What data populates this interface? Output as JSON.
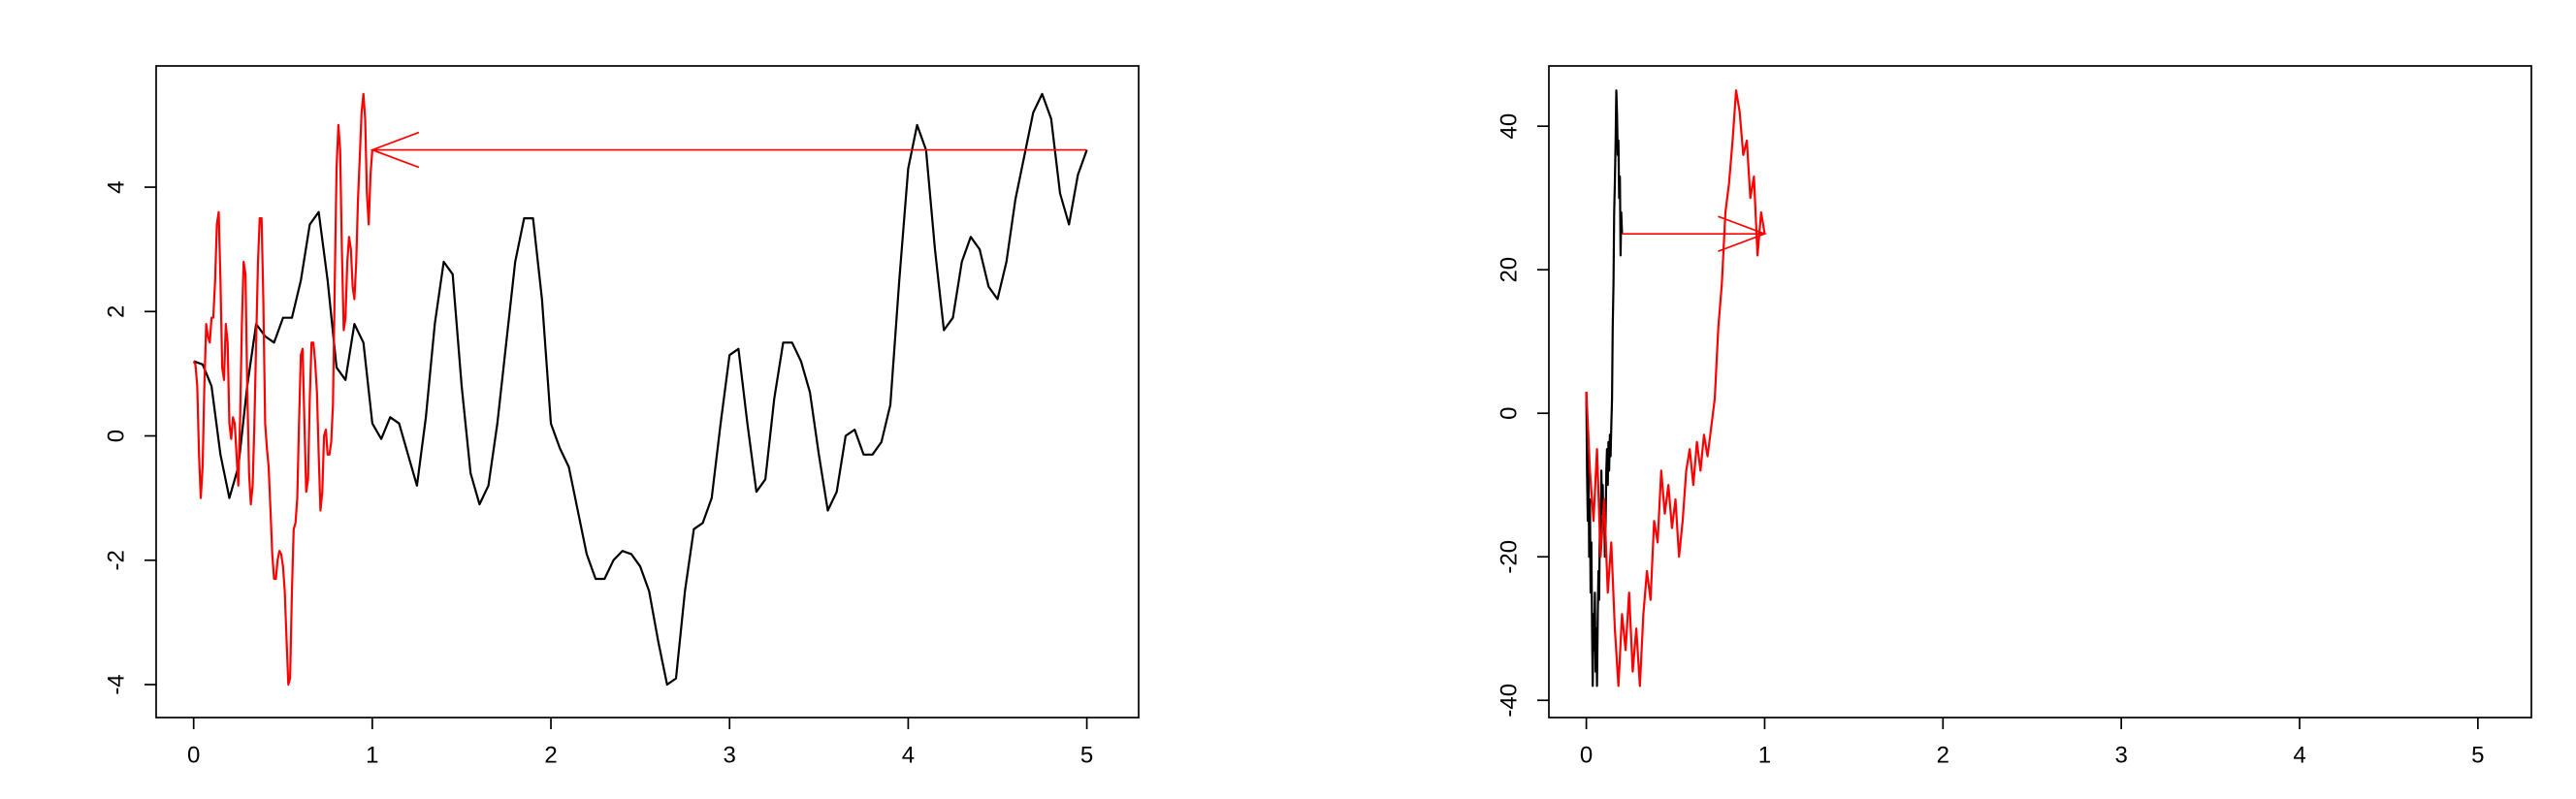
{
  "chart_data": [
    {
      "type": "line",
      "xlim": [
        -0.21,
        5.29
      ],
      "ylim": [
        -4.53,
        5.95
      ],
      "xticks": [
        0,
        1,
        2,
        3,
        4,
        5
      ],
      "yticks": [
        -4,
        -2,
        0,
        2,
        4
      ],
      "series": [
        {
          "color": "#000000",
          "x": [
            0,
            0.05,
            0.1,
            0.15,
            0.2,
            0.25,
            0.3,
            0.35,
            0.4,
            0.45,
            0.5,
            0.55,
            0.6,
            0.65,
            0.7,
            0.75,
            0.8,
            0.85,
            0.9,
            0.95,
            1,
            1.05,
            1.1,
            1.15,
            1.2,
            1.25,
            1.3,
            1.35,
            1.4,
            1.45,
            1.5,
            1.55,
            1.6,
            1.65,
            1.7,
            1.75,
            1.8,
            1.85,
            1.9,
            1.95,
            2,
            2.05,
            2.1,
            2.15,
            2.2,
            2.25,
            2.3,
            2.35,
            2.4,
            2.45,
            2.5,
            2.55,
            2.6,
            2.65,
            2.7,
            2.75,
            2.8,
            2.85,
            2.9,
            2.95,
            3,
            3.05,
            3.1,
            3.15,
            3.2,
            3.25,
            3.3,
            3.35,
            3.4,
            3.45,
            3.5,
            3.55,
            3.6,
            3.65,
            3.7,
            3.75,
            3.8,
            3.85,
            3.9,
            3.95,
            4,
            4.05,
            4.1,
            4.15,
            4.2,
            4.25,
            4.3,
            4.35,
            4.4,
            4.45,
            4.5,
            4.55,
            4.6,
            4.65,
            4.7,
            4.75,
            4.8,
            4.85,
            4.9,
            4.95,
            5
          ],
          "values": [
            1.2,
            1.15,
            0.8,
            -0.3,
            -1.0,
            -0.5,
            0.8,
            1.8,
            1.6,
            1.5,
            1.9,
            1.9,
            2.5,
            3.4,
            3.6,
            2.5,
            1.1,
            0.9,
            1.8,
            1.5,
            0.2,
            -0.05,
            0.3,
            0.2,
            -0.3,
            -0.8,
            0.3,
            1.8,
            2.8,
            2.6,
            0.8,
            -0.6,
            -1.1,
            -0.8,
            0.2,
            1.5,
            2.8,
            3.5,
            3.5,
            2.2,
            0.2,
            -0.2,
            -0.5,
            -1.2,
            -1.9,
            -2.3,
            -2.3,
            -2.0,
            -1.85,
            -1.9,
            -2.1,
            -2.5,
            -3.3,
            -4.0,
            -3.9,
            -2.5,
            -1.5,
            -1.4,
            -1.0,
            0.2,
            1.3,
            1.4,
            0.2,
            -0.9,
            -0.7,
            0.6,
            1.5,
            1.5,
            1.2,
            0.7,
            -0.3,
            -1.2,
            -0.9,
            0.0,
            0.1,
            -0.3,
            -0.3,
            -0.1,
            0.5,
            2.5,
            4.3,
            5.0,
            4.6,
            3.0,
            1.7,
            1.9,
            2.8,
            3.2,
            3.0,
            2.4,
            2.2,
            2.8,
            3.8,
            4.5,
            5.2,
            5.5,
            5.1,
            3.9,
            3.4,
            4.2,
            4.6
          ]
        },
        {
          "color": "#ff0000",
          "x": [
            0,
            0.01,
            0.02,
            0.03,
            0.04,
            0.05,
            0.06,
            0.07,
            0.08,
            0.09,
            0.1,
            0.11,
            0.12,
            0.13,
            0.14,
            0.15,
            0.16,
            0.17,
            0.18,
            0.19,
            0.2,
            0.21,
            0.22,
            0.23,
            0.24,
            0.25,
            0.26,
            0.27,
            0.28,
            0.29,
            0.3,
            0.31,
            0.32,
            0.33,
            0.34,
            0.35,
            0.36,
            0.37,
            0.38,
            0.39,
            0.4,
            0.41,
            0.42,
            0.43,
            0.44,
            0.45,
            0.46,
            0.47,
            0.48,
            0.49,
            0.5,
            0.51,
            0.52,
            0.53,
            0.54,
            0.55,
            0.56,
            0.57,
            0.58,
            0.59,
            0.6,
            0.61,
            0.62,
            0.63,
            0.64,
            0.65,
            0.66,
            0.67,
            0.68,
            0.69,
            0.7,
            0.71,
            0.72,
            0.73,
            0.74,
            0.75,
            0.76,
            0.77,
            0.78,
            0.79,
            0.8,
            0.81,
            0.82,
            0.83,
            0.84,
            0.85,
            0.86,
            0.87,
            0.88,
            0.89,
            0.9,
            0.91,
            0.92,
            0.93,
            0.94,
            0.95,
            0.96,
            0.97,
            0.98,
            0.99,
            1
          ],
          "values": [
            1.2,
            1.15,
            0.8,
            -0.3,
            -1.0,
            -0.5,
            0.8,
            1.8,
            1.6,
            1.5,
            1.9,
            1.9,
            2.5,
            3.4,
            3.6,
            2.5,
            1.1,
            0.9,
            1.8,
            1.5,
            0.2,
            -0.05,
            0.3,
            0.2,
            -0.3,
            -0.8,
            0.3,
            1.8,
            2.8,
            2.6,
            0.8,
            -0.6,
            -1.1,
            -0.8,
            0.2,
            1.5,
            2.8,
            3.5,
            3.5,
            2.2,
            0.2,
            -0.2,
            -0.5,
            -1.2,
            -1.9,
            -2.3,
            -2.3,
            -2.0,
            -1.85,
            -1.9,
            -2.1,
            -2.5,
            -3.3,
            -4.0,
            -3.9,
            -2.5,
            -1.5,
            -1.4,
            -1.0,
            0.2,
            1.3,
            1.4,
            0.2,
            -0.9,
            -0.7,
            0.6,
            1.5,
            1.5,
            1.2,
            0.7,
            -0.3,
            -1.2,
            -0.9,
            0.0,
            0.1,
            -0.3,
            -0.3,
            -0.1,
            0.5,
            2.5,
            4.3,
            5.0,
            4.6,
            3.0,
            1.7,
            1.9,
            2.8,
            3.2,
            3.0,
            2.4,
            2.2,
            2.8,
            3.8,
            4.5,
            5.2,
            5.5,
            5.1,
            3.9,
            3.4,
            4.2,
            4.6
          ]
        }
      ],
      "arrows": [
        {
          "x0": 5,
          "x1": 1,
          "y": 4.6,
          "color": "#ff0000"
        }
      ]
    },
    {
      "type": "line",
      "xlim": [
        -0.21,
        5.3
      ],
      "ylim": [
        -42.4,
        48.4
      ],
      "xticks": [
        0,
        1,
        2,
        3,
        4,
        5
      ],
      "yticks": [
        -40,
        -20,
        0,
        20,
        40
      ],
      "series": [
        {
          "color": "#000000",
          "x": [
            0,
            0.004,
            0.008,
            0.012,
            0.016,
            0.02,
            0.024,
            0.028,
            0.032,
            0.036,
            0.04,
            0.044,
            0.048,
            0.052,
            0.056,
            0.06,
            0.064,
            0.068,
            0.072,
            0.076,
            0.08,
            0.084,
            0.088,
            0.092,
            0.096,
            0.1,
            0.104,
            0.108,
            0.112,
            0.116,
            0.12,
            0.124,
            0.128,
            0.132,
            0.136,
            0.14,
            0.144,
            0.148,
            0.152,
            0.156,
            0.16,
            0.164,
            0.168,
            0.172,
            0.176,
            0.18,
            0.184,
            0.188,
            0.192,
            0.196,
            0.2
          ],
          "values": [
            3,
            -8,
            -15,
            -5,
            -20,
            -12,
            -25,
            -18,
            -30,
            -38,
            -28,
            -33,
            -25,
            -36,
            -30,
            -38,
            -28,
            -22,
            -26,
            -15,
            -18,
            -8,
            -14,
            -10,
            -16,
            -12,
            -20,
            -15,
            -8,
            -5,
            -10,
            -4,
            -8,
            -3,
            -6,
            -2,
            2,
            12,
            18,
            28,
            32,
            38,
            45,
            42,
            36,
            38,
            30,
            33,
            22,
            28,
            25
          ]
        },
        {
          "color": "#ff0000",
          "x": [
            0,
            0.02,
            0.04,
            0.06,
            0.08,
            0.1,
            0.12,
            0.14,
            0.16,
            0.18,
            0.2,
            0.22,
            0.24,
            0.26,
            0.28,
            0.3,
            0.32,
            0.34,
            0.36,
            0.38,
            0.4,
            0.42,
            0.44,
            0.46,
            0.48,
            0.5,
            0.52,
            0.54,
            0.56,
            0.58,
            0.6,
            0.62,
            0.64,
            0.66,
            0.68,
            0.7,
            0.72,
            0.74,
            0.76,
            0.78,
            0.8,
            0.82,
            0.84,
            0.86,
            0.88,
            0.9,
            0.92,
            0.94,
            0.96,
            0.98,
            1
          ],
          "values": [
            3,
            -8,
            -15,
            -5,
            -20,
            -12,
            -25,
            -18,
            -30,
            -38,
            -28,
            -33,
            -25,
            -36,
            -30,
            -38,
            -28,
            -22,
            -26,
            -15,
            -18,
            -8,
            -14,
            -10,
            -16,
            -12,
            -20,
            -15,
            -8,
            -5,
            -10,
            -4,
            -8,
            -3,
            -6,
            -2,
            2,
            12,
            18,
            28,
            32,
            38,
            45,
            42,
            36,
            38,
            30,
            33,
            22,
            28,
            25
          ]
        }
      ],
      "arrows": [
        {
          "x0": 0.2,
          "x1": 1,
          "y": 25,
          "color": "#ff0000"
        }
      ]
    }
  ]
}
